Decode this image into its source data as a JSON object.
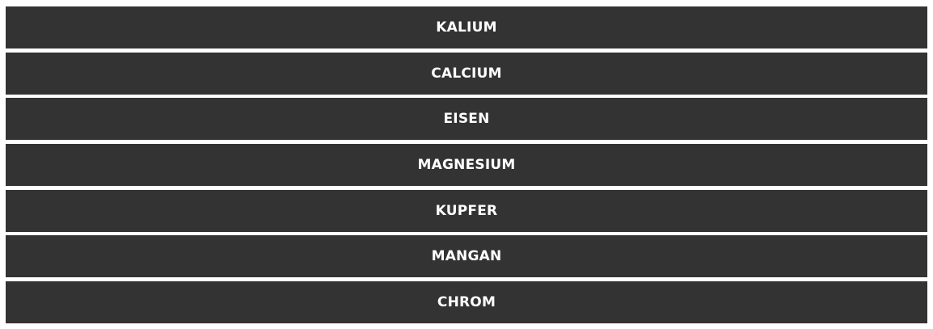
{
  "accordion": {
    "items": [
      {
        "label": "KALIUM"
      },
      {
        "label": "CALCIUM"
      },
      {
        "label": "EISEN"
      },
      {
        "label": "MAGNESIUM"
      },
      {
        "label": "KUPFER"
      },
      {
        "label": "MANGAN"
      },
      {
        "label": "CHROM"
      }
    ],
    "colors": {
      "background": "#333333",
      "text": "#ffffff"
    }
  }
}
